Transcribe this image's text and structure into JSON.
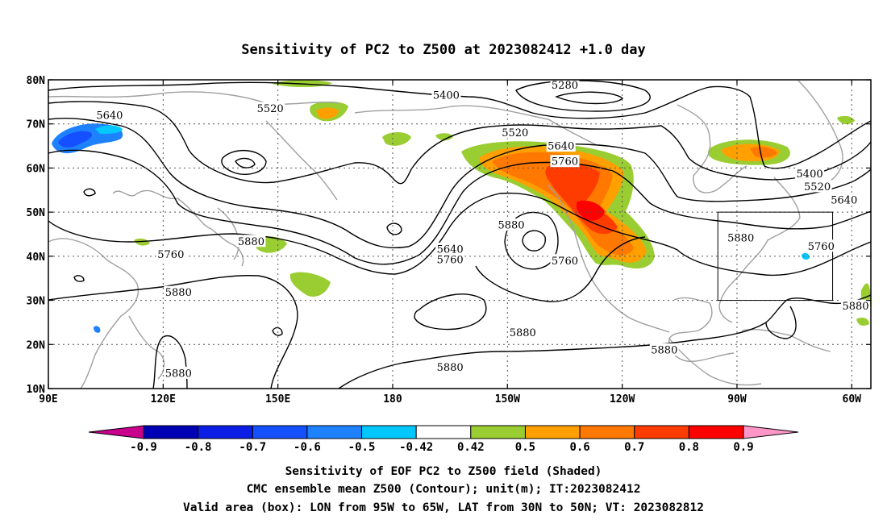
{
  "title": "Sensitivity of PC2 to Z500 at 2023082412 +1.0 day",
  "map": {
    "lon_range": [
      90,
      305
    ],
    "lat_range": [
      10,
      80
    ],
    "lat_ticks": [
      {
        "value": 80,
        "label": "80N"
      },
      {
        "value": 70,
        "label": "70N"
      },
      {
        "value": 60,
        "label": "60N"
      },
      {
        "value": 50,
        "label": "50N"
      },
      {
        "value": 40,
        "label": "40N"
      },
      {
        "value": 30,
        "label": "30N"
      },
      {
        "value": 20,
        "label": "20N"
      },
      {
        "value": 10,
        "label": "10N"
      }
    ],
    "lon_ticks": [
      {
        "value": 90,
        "label": "90E"
      },
      {
        "value": 120,
        "label": "120E"
      },
      {
        "value": 150,
        "label": "150E"
      },
      {
        "value": 180,
        "label": "180"
      },
      {
        "value": 210,
        "label": "150W"
      },
      {
        "value": 240,
        "label": "120W"
      },
      {
        "value": 270,
        "label": "90W"
      },
      {
        "value": 300,
        "label": "60W"
      }
    ],
    "grid": "dotted",
    "valid_box": {
      "lon": [
        265,
        295
      ],
      "lat": [
        30,
        50
      ]
    }
  },
  "contour_labels": [
    {
      "text": "5640",
      "lon": 106,
      "lat": 72.0
    },
    {
      "text": "5520",
      "lon": 148,
      "lat": 73.5
    },
    {
      "text": "5400",
      "lon": 194,
      "lat": 76.5
    },
    {
      "text": "5280",
      "lon": 225,
      "lat": 78.8
    },
    {
      "text": "5520",
      "lon": 212,
      "lat": 68.0
    },
    {
      "text": "5640",
      "lon": 224,
      "lat": 65.0
    },
    {
      "text": "5760",
      "lon": 225,
      "lat": 61.5
    },
    {
      "text": "5400",
      "lon": 289,
      "lat": 58.7
    },
    {
      "text": "5520",
      "lon": 291,
      "lat": 55.8
    },
    {
      "text": "5640",
      "lon": 298,
      "lat": 52.8
    },
    {
      "text": "5760",
      "lon": 292,
      "lat": 42.3
    },
    {
      "text": "5880",
      "lon": 271,
      "lat": 44.2
    },
    {
      "text": "5880",
      "lon": 211,
      "lat": 47.1
    },
    {
      "text": "5760",
      "lon": 225,
      "lat": 39.0
    },
    {
      "text": "5640",
      "lon": 195,
      "lat": 41.6
    },
    {
      "text": "5760",
      "lon": 195,
      "lat": 39.2
    },
    {
      "text": "5880",
      "lon": 143,
      "lat": 43.4
    },
    {
      "text": "5760",
      "lon": 122,
      "lat": 40.4
    },
    {
      "text": "5880",
      "lon": 124,
      "lat": 31.8
    },
    {
      "text": "5880",
      "lon": 214,
      "lat": 22.7
    },
    {
      "text": "5880",
      "lon": 251,
      "lat": 18.8
    },
    {
      "text": "5880",
      "lon": 195,
      "lat": 14.8
    },
    {
      "text": "5880",
      "lon": 124,
      "lat": 13.5
    },
    {
      "text": "5880",
      "lon": 301,
      "lat": 28.7
    }
  ],
  "colorbar": {
    "labels": [
      "-0.9",
      "-0.8",
      "-0.7",
      "-0.6",
      "-0.5",
      "-0.42",
      "0.42",
      "0.5",
      "0.6",
      "0.7",
      "0.8",
      "0.9"
    ],
    "colors": [
      "#c8008c",
      "#0000b4",
      "#0a1ee6",
      "#1450ff",
      "#1e82ff",
      "#00c8ff",
      "#ffffff",
      "#9acd32",
      "#ffa000",
      "#ff7800",
      "#ff3c00",
      "#ff0000",
      "#ff96c8"
    ]
  },
  "caption": {
    "line1": "Sensitivity of EOF PC2 to Z500 field (Shaded)",
    "line2": "CMC ensemble mean Z500 (Contour); unit(m); IT:2023082412",
    "line3": "Valid area (box): LON from 95W to 65W, LAT from 30N to 50N; VT: 2023082812"
  }
}
